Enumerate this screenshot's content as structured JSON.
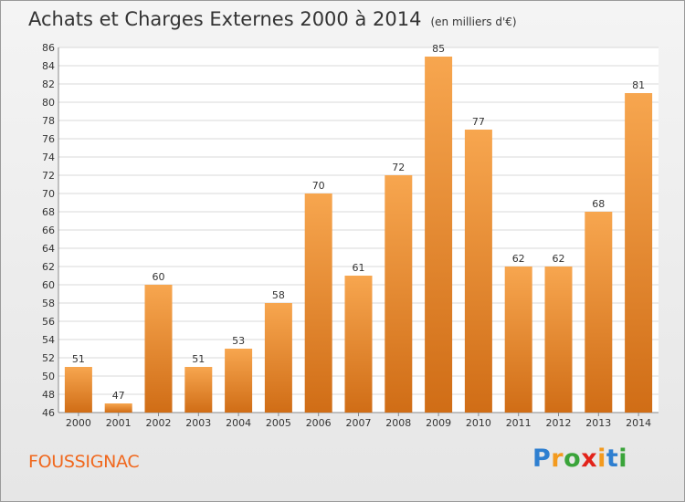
{
  "header": {
    "title": "Achats et Charges Externes 2000 à 2014",
    "unit": "(en milliers d'€)"
  },
  "footer": {
    "commune": "FOUSSIGNAC",
    "brand": "Proxiti",
    "brand_letters": [
      "P",
      "r",
      "o",
      "x",
      "i",
      "t",
      "i"
    ],
    "brand_colors": [
      "#2e7fd0",
      "#f39a1e",
      "#3aa43a",
      "#e2231a",
      "#f39a1e",
      "#2e7fd0",
      "#3aa43a"
    ]
  },
  "colors": {
    "bar_top": "#f7a64f",
    "bar_bottom": "#d06d16",
    "grid": "#d8d8d8",
    "axis_text": "#333333"
  },
  "chart_data": {
    "type": "bar",
    "title": "Achats et Charges Externes 2000 à 2014",
    "ylabel": "",
    "xlabel": "",
    "categories": [
      "2000",
      "2001",
      "2002",
      "2003",
      "2004",
      "2005",
      "2006",
      "2007",
      "2008",
      "2009",
      "2010",
      "2011",
      "2012",
      "2013",
      "2014"
    ],
    "values": [
      51,
      47,
      60,
      51,
      53,
      58,
      70,
      61,
      72,
      85,
      77,
      62,
      62,
      68,
      81
    ],
    "ylim": [
      46,
      86
    ],
    "yticks": [
      46,
      48,
      50,
      52,
      54,
      56,
      58,
      60,
      62,
      64,
      66,
      68,
      70,
      72,
      74,
      76,
      78,
      80,
      82,
      84,
      86
    ],
    "grid": true,
    "data_labels": true
  }
}
